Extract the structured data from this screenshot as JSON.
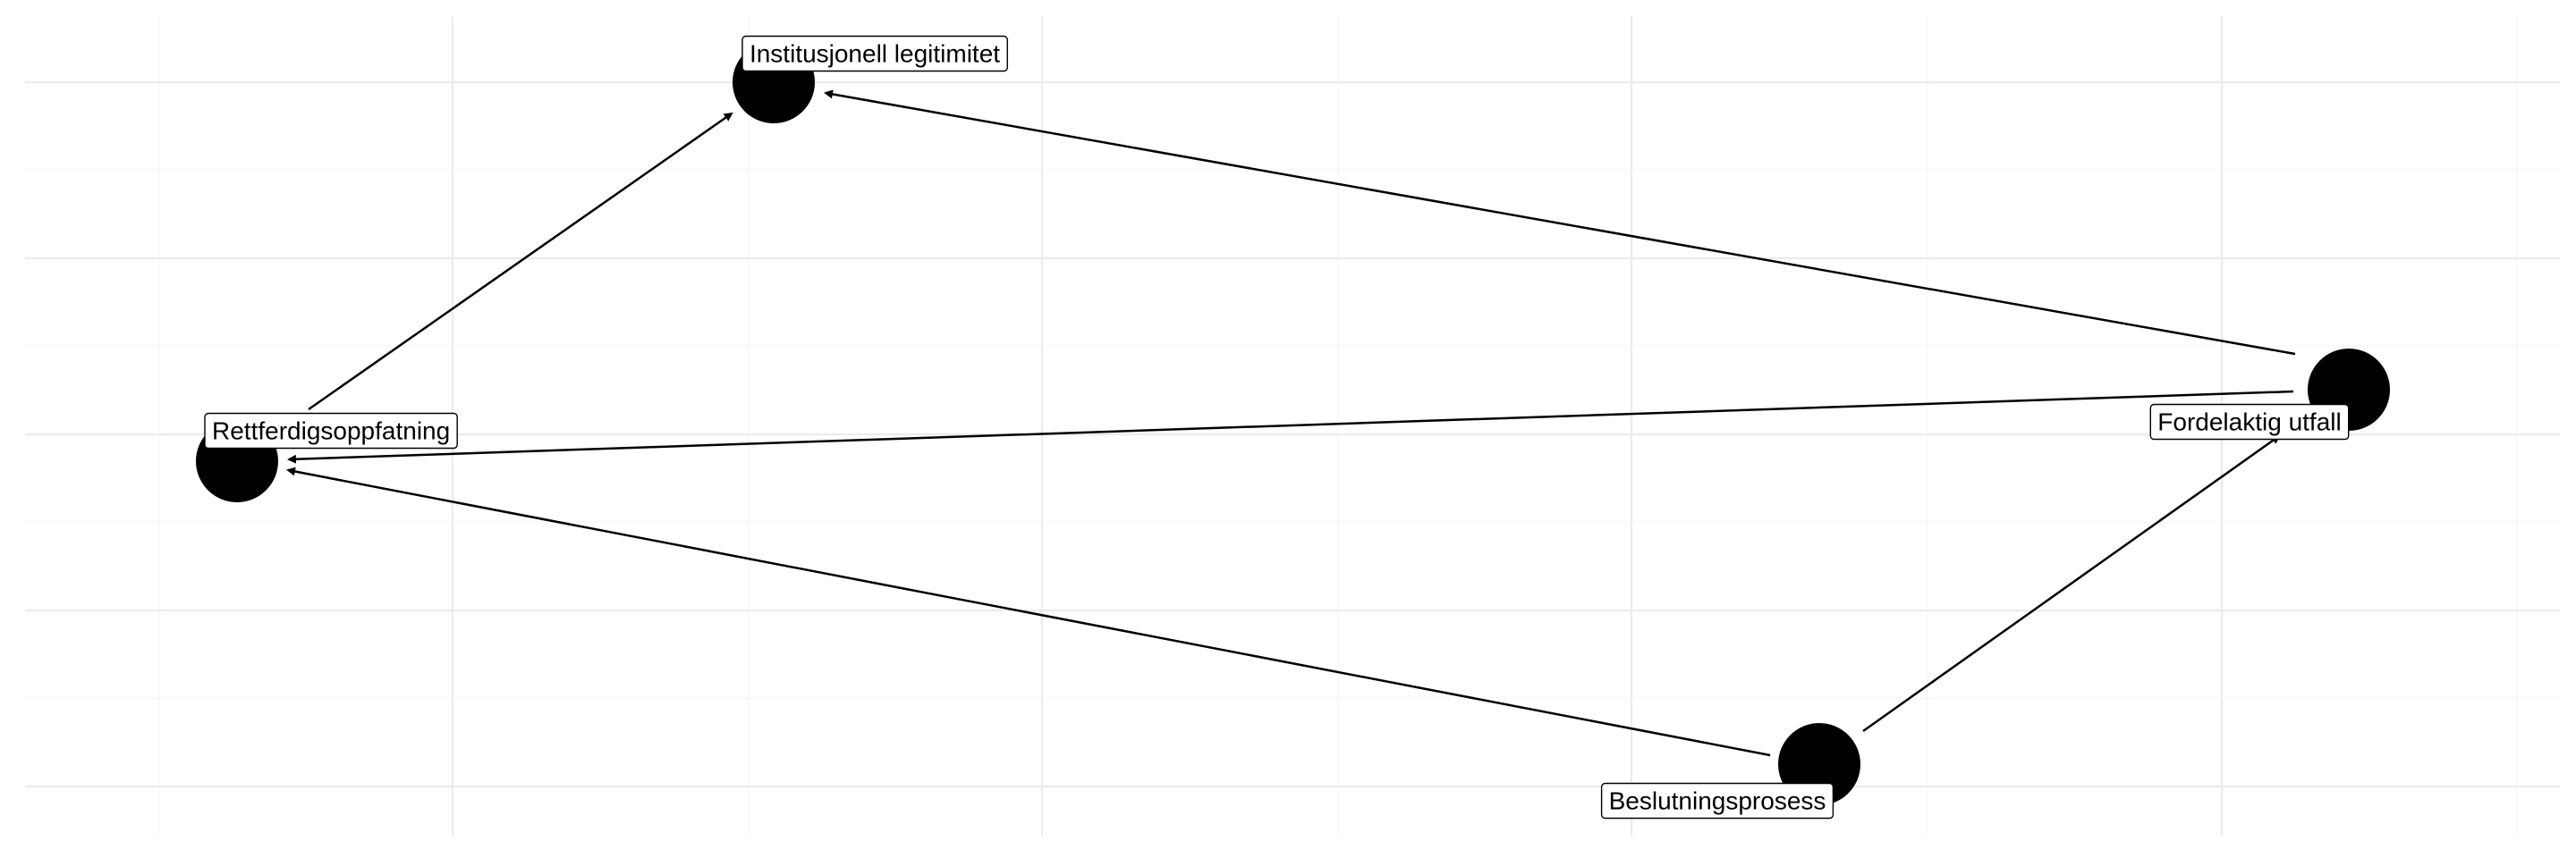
{
  "diagram": {
    "type": "directed-acyclic-graph",
    "grid": true,
    "colors": {
      "node": "#000000",
      "edge": "#000000",
      "grid": "#ebebeb",
      "background": "#ffffff"
    },
    "nodes": [
      {
        "id": "legitimitet",
        "label": "Institusjonell legitimitet"
      },
      {
        "id": "rettferdighet",
        "label": "Rettferdigsoppfatning"
      },
      {
        "id": "utfall",
        "label": "Fordelaktig utfall"
      },
      {
        "id": "prosess",
        "label": "Beslutningsprosess"
      }
    ],
    "edges": [
      {
        "from": "rettferdighet",
        "to": "legitimitet"
      },
      {
        "from": "utfall",
        "to": "legitimitet"
      },
      {
        "from": "utfall",
        "to": "rettferdighet"
      },
      {
        "from": "prosess",
        "to": "rettferdighet"
      },
      {
        "from": "prosess",
        "to": "utfall"
      }
    ]
  }
}
